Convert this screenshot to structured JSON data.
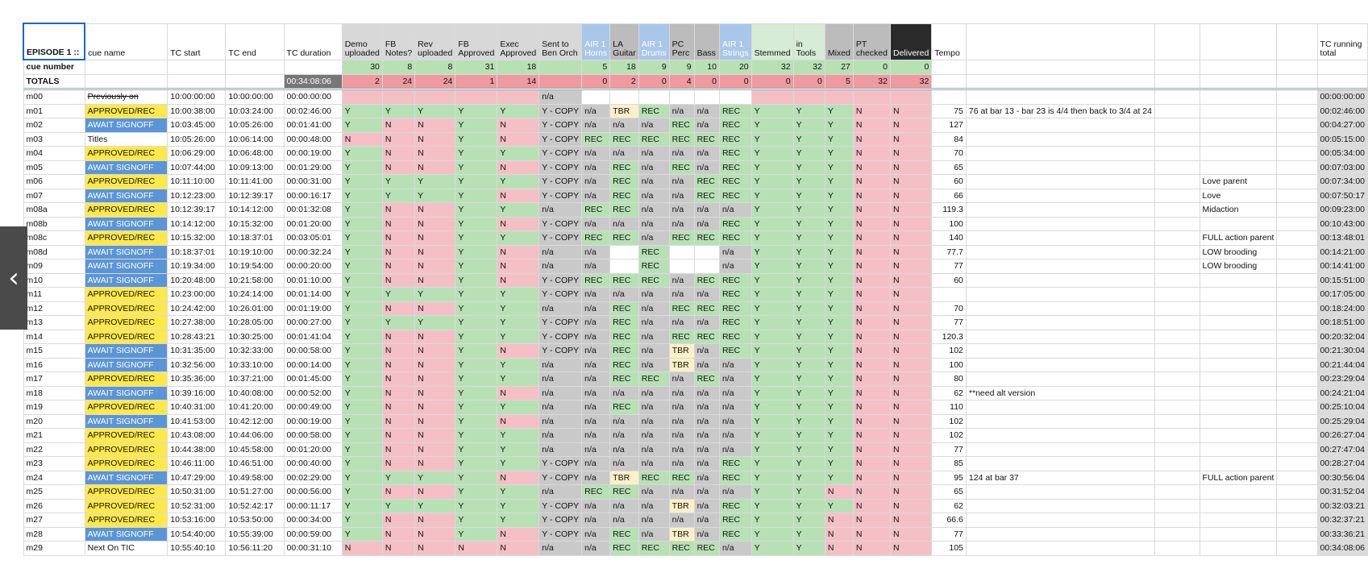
{
  "colors": {
    "green": "#b7e1b5",
    "pink": "#f4c0c5",
    "gray": "#c9c9c9",
    "cream": "#fdf0c8",
    "yellow": "#ffe94a",
    "blue": "#5b95d6",
    "hdr_gray": "#d8d8d8",
    "hdr_blue": "#a9c7eb",
    "hdr_mid": "#bcbcbc",
    "hdr_green": "#d6ecd4",
    "hdr_black": "#2a2a2a",
    "totals_pink": "#ef9a9f",
    "totals_gray": "#777777",
    "total_box": "#dcdcdc"
  },
  "nav": {
    "prev_icon": "chevron-left-icon",
    "prev_glyph": "‹"
  },
  "headers": {
    "episode": "EPISODE 1 ::",
    "cue_name": "cue name",
    "tc_start": "TC start",
    "tc_end": "TC end",
    "tc_duration": "TC duration",
    "tempo": "Tempo",
    "running": "TC running total",
    "tracks": [
      "Demo uploaded",
      "FB Notes?",
      "Rev uploaded",
      "FB Approved",
      "Exec Approved",
      "Sent to Ben Orch",
      "AIR 1 Horns",
      "LA Guitar",
      "AIR 1 Drums",
      "PC Perc",
      "Bass",
      "AIR 1 Strings",
      "Stemmed",
      "in Tools",
      "Mixed",
      "PT checked",
      "Delivered"
    ]
  },
  "cue_number_row": {
    "label": "cue number",
    "values": [
      "30",
      "8",
      "8",
      "31",
      "18",
      "",
      "5",
      "18",
      "9",
      "9",
      "10",
      "20",
      "32",
      "32",
      "27",
      "0",
      "0"
    ]
  },
  "totals_row": {
    "label": "TOTALS",
    "duration": "00:34:08:06",
    "values": [
      "2",
      "24",
      "24",
      "1",
      "14",
      "",
      "0",
      "2",
      "0",
      "4",
      "0",
      "0",
      "0",
      "0",
      "5",
      "32",
      "32"
    ]
  },
  "rows": [
    {
      "id": "m00",
      "name": "Previously on",
      "nc": "strike",
      "start": "10:00:00:00",
      "end": "10:00:00:00",
      "dur": "00:00:00:00",
      "t": [
        "",
        "",
        "",
        "",
        "",
        "n/a",
        "",
        "",
        "",
        "",
        "",
        "",
        "",
        "",
        "",
        "",
        ""
      ],
      "tempo": "",
      "n1": "",
      "n2": "",
      "run": "00:00:00:00"
    },
    {
      "id": "m01",
      "name": "APPROVED/REC",
      "nc": "yellow",
      "start": "10:00:38:00",
      "end": "10:03:24:00",
      "dur": "00:02:46:00",
      "t": [
        "Y",
        "Y",
        "Y",
        "Y",
        "Y",
        "Y - COPY",
        "n/a",
        "TBR",
        "REC",
        "n/a",
        "n/a",
        "REC",
        "Y",
        "Y",
        "Y",
        "N",
        "N"
      ],
      "tempo": "75",
      "n1": "76 at bar 13 - bar 23 is 4/4 then back to 3/4 at 24",
      "n2": "",
      "run": "00:02:46:00"
    },
    {
      "id": "m02",
      "name": "AWAIT SIGNOFF",
      "nc": "blue",
      "start": "10:03:45:00",
      "end": "10:05:26:00",
      "dur": "00:01:41:00",
      "t": [
        "Y",
        "N",
        "N",
        "Y",
        "N",
        "Y - COPY",
        "n/a",
        "n/a",
        "n/a",
        "REC",
        "n/a",
        "REC",
        "Y",
        "Y",
        "Y",
        "N",
        "N"
      ],
      "tempo": "127",
      "n1": "",
      "n2": "",
      "run": "00:04:27:00"
    },
    {
      "id": "m03",
      "name": "Titles",
      "nc": "",
      "start": "10:05:26:00",
      "end": "10:06:14:00",
      "dur": "00:00:48:00",
      "t": [
        "N",
        "N",
        "N",
        "Y",
        "N",
        "Y - COPY",
        "REC",
        "REC",
        "REC",
        "REC",
        "REC",
        "REC",
        "Y",
        "Y",
        "Y",
        "N",
        "N"
      ],
      "tempo": "84",
      "n1": "",
      "n2": "",
      "run": "00:05:15:00"
    },
    {
      "id": "m04",
      "name": "APPROVED/REC",
      "nc": "yellow",
      "start": "10:06:29:00",
      "end": "10:06:48:00",
      "dur": "00:00:19:00",
      "t": [
        "Y",
        "N",
        "N",
        "Y",
        "Y",
        "Y - COPY",
        "n/a",
        "n/a",
        "n/a",
        "n/a",
        "n/a",
        "REC",
        "Y",
        "Y",
        "Y",
        "N",
        "N"
      ],
      "tempo": "70",
      "n1": "",
      "n2": "",
      "run": "00:05:34:00"
    },
    {
      "id": "m05",
      "name": "AWAIT SIGNOFF",
      "nc": "blue",
      "start": "10:07:44:00",
      "end": "10:09:13:00",
      "dur": "00:01:29:00",
      "t": [
        "Y",
        "N",
        "N",
        "Y",
        "N",
        "Y - COPY",
        "n/a",
        "REC",
        "n/a",
        "REC",
        "n/a",
        "REC",
        "Y",
        "Y",
        "Y",
        "N",
        "N"
      ],
      "tempo": "65",
      "n1": "",
      "n2": "",
      "run": "00:07:03:00"
    },
    {
      "id": "m06",
      "name": "APPROVED/REC",
      "nc": "yellow",
      "start": "10:11:10:00",
      "end": "10:11:41:00",
      "dur": "00:00:31:00",
      "t": [
        "Y",
        "Y",
        "Y",
        "Y",
        "Y",
        "Y - COPY",
        "n/a",
        "REC",
        "n/a",
        "n/a",
        "REC",
        "REC",
        "Y",
        "Y",
        "Y",
        "N",
        "N"
      ],
      "tempo": "60",
      "n1": "",
      "n2": "Love parent",
      "run": "00:07:34:00"
    },
    {
      "id": "m07",
      "name": "AWAIT SIGNOFF",
      "nc": "blue",
      "start": "10:12:23:00",
      "end": "10:12:39:17",
      "dur": "00:00:16:17",
      "t": [
        "Y",
        "Y",
        "Y",
        "Y",
        "N",
        "Y - COPY",
        "n/a",
        "REC",
        "n/a",
        "n/a",
        "REC",
        "REC",
        "Y",
        "Y",
        "Y",
        "N",
        "N"
      ],
      "tempo": "66",
      "n1": "",
      "n2": "Love",
      "run": "00:07:50:17"
    },
    {
      "id": "m08a",
      "name": "APPROVED/REC",
      "nc": "yellow",
      "start": "10:12:39:17",
      "end": "10:14:12:00",
      "dur": "00:01:32:08",
      "t": [
        "Y",
        "N",
        "N",
        "Y",
        "Y",
        "n/a",
        "REC",
        "REC",
        "n/a",
        "n/a",
        "n/a",
        "n/a",
        "Y",
        "Y",
        "Y",
        "N",
        "N"
      ],
      "tempo": "119.3",
      "n1": "",
      "n2": "Midaction",
      "run": "00:09:23:00"
    },
    {
      "id": "m08b",
      "name": "AWAIT SIGNOFF",
      "nc": "blue",
      "start": "10:14:12:00",
      "end": "10:15:32:00",
      "dur": "00:01:20:00",
      "t": [
        "Y",
        "N",
        "N",
        "Y",
        "N",
        "Y - COPY",
        "n/a",
        "n/a",
        "n/a",
        "n/a",
        "n/a",
        "REC",
        "Y",
        "Y",
        "Y",
        "N",
        "N"
      ],
      "tempo": "100",
      "n1": "",
      "n2": "",
      "run": "00:10:43:00"
    },
    {
      "id": "m08c",
      "name": "APPROVED/REC",
      "nc": "yellow",
      "start": "10:15:32:00",
      "end": "10:18:37:01",
      "dur": "00:03:05:01",
      "t": [
        "Y",
        "N",
        "N",
        "Y",
        "Y",
        "Y - COPY",
        "REC",
        "REC",
        "n/a",
        "REC",
        "REC",
        "REC",
        "Y",
        "Y",
        "Y",
        "N",
        "N"
      ],
      "tempo": "140",
      "n1": "",
      "n2": "FULL action parent",
      "run": "00:13:48:01"
    },
    {
      "id": "m08d",
      "name": "AWAIT SIGNOFF",
      "nc": "blue",
      "start": "10:18:37:01",
      "end": "10:19:10:00",
      "dur": "00:00:32:24",
      "t": [
        "Y",
        "N",
        "N",
        "Y",
        "N",
        "n/a",
        "n/a",
        "",
        "REC",
        "",
        "",
        "n/a",
        "Y",
        "Y",
        "Y",
        "N",
        "N"
      ],
      "tempo": "77.7",
      "n1": "",
      "n2": "LOW brooding",
      "run": "00:14:21:00"
    },
    {
      "id": "m09",
      "name": "AWAIT SIGNOFF",
      "nc": "blue",
      "start": "10:19:34:00",
      "end": "10:19:54:00",
      "dur": "00:00:20:00",
      "t": [
        "Y",
        "N",
        "N",
        "Y",
        "N",
        "n/a",
        "n/a",
        "",
        "REC",
        "",
        "",
        "n/a",
        "Y",
        "Y",
        "Y",
        "N",
        "N"
      ],
      "tempo": "77",
      "n1": "",
      "n2": "LOW brooding",
      "run": "00:14:41:00"
    },
    {
      "id": "m10",
      "name": "AWAIT SIGNOFF",
      "nc": "blue",
      "start": "10:20:48:00",
      "end": "10:21:58:00",
      "dur": "00:01:10:00",
      "t": [
        "Y",
        "N",
        "N",
        "Y",
        "N",
        "Y - COPY",
        "REC",
        "REC",
        "REC",
        "n/a",
        "REC",
        "REC",
        "Y",
        "Y",
        "Y",
        "N",
        "N"
      ],
      "tempo": "60",
      "n1": "",
      "n2": "",
      "run": "00:15:51:00"
    },
    {
      "id": "m11",
      "name": "APPROVED/REC",
      "nc": "yellow",
      "start": "10:23:00:00",
      "end": "10:24:14:00",
      "dur": "00:01:14:00",
      "t": [
        "Y",
        "Y",
        "Y",
        "Y",
        "Y",
        "Y - COPY",
        "n/a",
        "n/a",
        "n/a",
        "n/a",
        "n/a",
        "REC",
        "Y",
        "Y",
        "Y",
        "N",
        "N"
      ],
      "tempo": "",
      "n1": "",
      "n2": "",
      "run": "00:17:05:00"
    },
    {
      "id": "m12",
      "name": "APPROVED/REC",
      "nc": "yellow",
      "start": "10:24:42:00",
      "end": "10:26:01:00",
      "dur": "00:01:19:00",
      "t": [
        "Y",
        "N",
        "N",
        "Y",
        "Y",
        "n/a",
        "n/a",
        "REC",
        "n/a",
        "REC",
        "REC",
        "REC",
        "Y",
        "Y",
        "Y",
        "N",
        "N"
      ],
      "tempo": "70",
      "n1": "",
      "n2": "",
      "run": "00:18:24:00"
    },
    {
      "id": "m13",
      "name": "APPROVED/REC",
      "nc": "yellow",
      "start": "10:27:38:00",
      "end": "10:28:05:00",
      "dur": "00:00:27:00",
      "t": [
        "Y",
        "Y",
        "Y",
        "Y",
        "Y",
        "Y - COPY",
        "n/a",
        "REC",
        "n/a",
        "n/a",
        "n/a",
        "REC",
        "Y",
        "Y",
        "Y",
        "N",
        "N"
      ],
      "tempo": "77",
      "n1": "",
      "n2": "",
      "run": "00:18:51:00"
    },
    {
      "id": "m14",
      "name": "APPROVED/REC",
      "nc": "yellow",
      "start": "10:28:43:21",
      "end": "10:30:25:00",
      "dur": "00:01:41:04",
      "t": [
        "Y",
        "N",
        "N",
        "Y",
        "Y",
        "Y - COPY",
        "n/a",
        "REC",
        "n/a",
        "REC",
        "REC",
        "REC",
        "Y",
        "Y",
        "Y",
        "N",
        "N"
      ],
      "tempo": "120.3",
      "n1": "",
      "n2": "",
      "run": "00:20:32:04"
    },
    {
      "id": "m15",
      "name": "AWAIT SIGNOFF",
      "nc": "blue",
      "start": "10:31:35:00",
      "end": "10:32:33:00",
      "dur": "00:00:58:00",
      "t": [
        "Y",
        "N",
        "N",
        "Y",
        "N",
        "Y - COPY",
        "n/a",
        "REC",
        "n/a",
        "TBR",
        "n/a",
        "REC",
        "Y",
        "Y",
        "Y",
        "N",
        "N"
      ],
      "tempo": "102",
      "n1": "",
      "n2": "",
      "run": "00:21:30:04"
    },
    {
      "id": "m16",
      "name": "AWAIT SIGNOFF",
      "nc": "blue",
      "start": "10:32:56:00",
      "end": "10:33:10:00",
      "dur": "00:00:14:00",
      "t": [
        "Y",
        "N",
        "N",
        "Y",
        "Y",
        "n/a",
        "n/a",
        "REC",
        "n/a",
        "TBR",
        "n/a",
        "n/a",
        "Y",
        "Y",
        "Y",
        "N",
        "N"
      ],
      "tempo": "100",
      "n1": "",
      "n2": "",
      "run": "00:21:44:04"
    },
    {
      "id": "m17",
      "name": "APPROVED/REC",
      "nc": "yellow",
      "start": "10:35:36:00",
      "end": "10:37:21:00",
      "dur": "00:01:45:00",
      "t": [
        "Y",
        "N",
        "N",
        "Y",
        "Y",
        "n/a",
        "n/a",
        "REC",
        "REC",
        "n/a",
        "REC",
        "n/a",
        "Y",
        "Y",
        "Y",
        "N",
        "N"
      ],
      "tempo": "80",
      "n1": "",
      "n2": "",
      "run": "00:23:29:04"
    },
    {
      "id": "m18",
      "name": "AWAIT SIGNOFF",
      "nc": "blue",
      "start": "10:39:16:00",
      "end": "10:40:08:00",
      "dur": "00:00:52:00",
      "t": [
        "Y",
        "N",
        "N",
        "Y",
        "N",
        "n/a",
        "n/a",
        "n/a",
        "n/a",
        "n/a",
        "n/a",
        "n/a",
        "Y",
        "Y",
        "Y",
        "N",
        "N"
      ],
      "tempo": "62",
      "n1": "**need alt version",
      "n2": "",
      "run": "00:24:21:04"
    },
    {
      "id": "m19",
      "name": "APPROVED/REC",
      "nc": "yellow",
      "start": "10:40:31:00",
      "end": "10:41:20:00",
      "dur": "00:00:49:00",
      "t": [
        "Y",
        "N",
        "N",
        "Y",
        "Y",
        "n/a",
        "n/a",
        "REC",
        "n/a",
        "n/a",
        "n/a",
        "n/a",
        "Y",
        "Y",
        "Y",
        "N",
        "N"
      ],
      "tempo": "110",
      "n1": "",
      "n2": "",
      "run": "00:25:10:04"
    },
    {
      "id": "m20",
      "name": "AWAIT SIGNOFF",
      "nc": "blue",
      "start": "10:41:53:00",
      "end": "10:42:12:00",
      "dur": "00:00:19:00",
      "t": [
        "Y",
        "N",
        "N",
        "Y",
        "N",
        "n/a",
        "n/a",
        "n/a",
        "n/a",
        "n/a",
        "n/a",
        "n/a",
        "Y",
        "Y",
        "Y",
        "N",
        "N"
      ],
      "tempo": "102",
      "n1": "",
      "n2": "",
      "run": "00:25:29:04"
    },
    {
      "id": "m21",
      "name": "APPROVED/REC",
      "nc": "yellow",
      "start": "10:43:08:00",
      "end": "10:44:06:00",
      "dur": "00:00:58:00",
      "t": [
        "Y",
        "N",
        "N",
        "Y",
        "Y",
        "n/a",
        "n/a",
        "n/a",
        "n/a",
        "n/a",
        "n/a",
        "n/a",
        "Y",
        "Y",
        "Y",
        "N",
        "N"
      ],
      "tempo": "102",
      "n1": "",
      "n2": "",
      "run": "00:26:27:04"
    },
    {
      "id": "m22",
      "name": "APPROVED/REC",
      "nc": "yellow",
      "start": "10:44:38:00",
      "end": "10:45:58:00",
      "dur": "00:01:20:00",
      "t": [
        "Y",
        "N",
        "N",
        "Y",
        "Y",
        "n/a",
        "n/a",
        "n/a",
        "n/a",
        "n/a",
        "n/a",
        "n/a",
        "Y",
        "Y",
        "Y",
        "N",
        "N"
      ],
      "tempo": "77",
      "n1": "",
      "n2": "",
      "run": "00:27:47:04"
    },
    {
      "id": "m23",
      "name": "APPROVED/REC",
      "nc": "yellow",
      "start": "10:46:11:00",
      "end": "10:46:51:00",
      "dur": "00:00:40:00",
      "t": [
        "Y",
        "N",
        "N",
        "Y",
        "Y",
        "Y - COPY",
        "n/a",
        "n/a",
        "n/a",
        "n/a",
        "n/a",
        "REC",
        "Y",
        "Y",
        "Y",
        "N",
        "N"
      ],
      "tempo": "85",
      "n1": "",
      "n2": "",
      "run": "00:28:27:04"
    },
    {
      "id": "m24",
      "name": "AWAIT SIGNOFF",
      "nc": "blue",
      "start": "10:47:29:00",
      "end": "10:49:58:00",
      "dur": "00:02:29:00",
      "t": [
        "Y",
        "Y",
        "Y",
        "Y",
        "N",
        "Y - COPY",
        "n/a",
        "TBR",
        "REC",
        "REC",
        "n/a",
        "REC",
        "Y",
        "Y",
        "Y",
        "N",
        "N"
      ],
      "tempo": "95",
      "n1": "124 at bar 37",
      "n2": "FULL action parent",
      "run": "00:30:56:04"
    },
    {
      "id": "m25",
      "name": "APPROVED/REC",
      "nc": "yellow",
      "start": "10:50:31:00",
      "end": "10:51:27:00",
      "dur": "00:00:56:00",
      "t": [
        "Y",
        "N",
        "N",
        "Y",
        "Y",
        "n/a",
        "REC",
        "REC",
        "n/a",
        "n/a",
        "n/a",
        "n/a",
        "Y",
        "Y",
        "N",
        "N",
        "N"
      ],
      "tempo": "65",
      "n1": "",
      "n2": "",
      "run": "00:31:52:04"
    },
    {
      "id": "m26",
      "name": "APPROVED/REC",
      "nc": "yellow",
      "start": "10:52:31:00",
      "end": "10:52:42:17",
      "dur": "00:00:11:17",
      "t": [
        "Y",
        "Y",
        "Y",
        "Y",
        "Y",
        "Y - COPY",
        "n/a",
        "n/a",
        "n/a",
        "TBR",
        "n/a",
        "REC",
        "Y",
        "Y",
        "Y",
        "N",
        "N"
      ],
      "tempo": "62",
      "n1": "",
      "n2": "",
      "run": "00:32:03:21"
    },
    {
      "id": "m27",
      "name": "APPROVED/REC",
      "nc": "yellow",
      "start": "10:53:16:00",
      "end": "10:53:50:00",
      "dur": "00:00:34:00",
      "t": [
        "Y",
        "N",
        "N",
        "Y",
        "Y",
        "Y - COPY",
        "n/a",
        "n/a",
        "n/a",
        "n/a",
        "n/a",
        "REC",
        "Y",
        "Y",
        "N",
        "N",
        "N"
      ],
      "tempo": "66.6",
      "n1": "",
      "n2": "",
      "run": "00:32:37:21"
    },
    {
      "id": "m28",
      "name": "AWAIT SIGNOFF",
      "nc": "blue",
      "start": "10:54:40:00",
      "end": "10:55:39:00",
      "dur": "00:00:59:00",
      "t": [
        "Y",
        "N",
        "N",
        "Y",
        "N",
        "Y - COPY",
        "n/a",
        "REC",
        "n/a",
        "TBR",
        "n/a",
        "REC",
        "Y",
        "Y",
        "N",
        "N",
        "N"
      ],
      "tempo": "77",
      "n1": "",
      "n2": "",
      "run": "00:33:36:21"
    },
    {
      "id": "m29",
      "name": "Next On TIC",
      "nc": "",
      "start": "10:55:40:10",
      "end": "10:56:11:20",
      "dur": "00:00:31:10",
      "t": [
        "N",
        "N",
        "N",
        "N",
        "N",
        "n/a",
        "n/a",
        "REC",
        "REC",
        "REC",
        "REC",
        "n/a",
        "Y",
        "Y",
        "N",
        "N",
        "N"
      ],
      "tempo": "105",
      "n1": "",
      "n2": "",
      "run": "00:34:08:06"
    }
  ]
}
